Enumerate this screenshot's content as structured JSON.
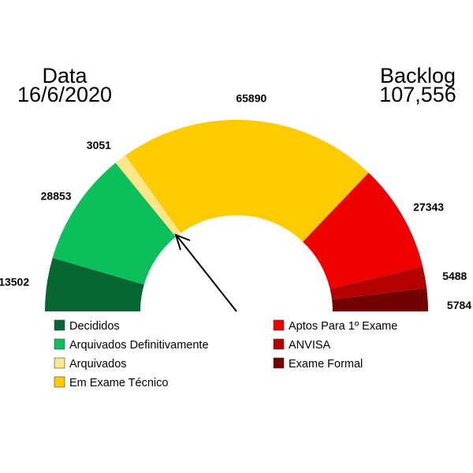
{
  "header": {
    "left_title": "Data",
    "left_value": "16/6/2020",
    "right_title": "Backlog",
    "right_value": "107,556"
  },
  "chart_data": {
    "type": "gauge",
    "categories": [
      "Decididos",
      "Arquivados Definitivamente",
      "Arquivados",
      "Em Exame Técnico",
      "Aptos Para 1º Exame",
      "ANVISA",
      "Exame Formal"
    ],
    "values": [
      13502,
      28853,
      3051,
      65890,
      27343,
      5488,
      5784
    ],
    "colors": [
      "#076632",
      "#0bbf5a",
      "#fde68c",
      "#fecb00",
      "#ee0000",
      "#b30000",
      "#730000"
    ],
    "legend_placement": "bottom",
    "pointer": "arrow pointing at boundary between Arquivados and Em Exame Técnico"
  }
}
